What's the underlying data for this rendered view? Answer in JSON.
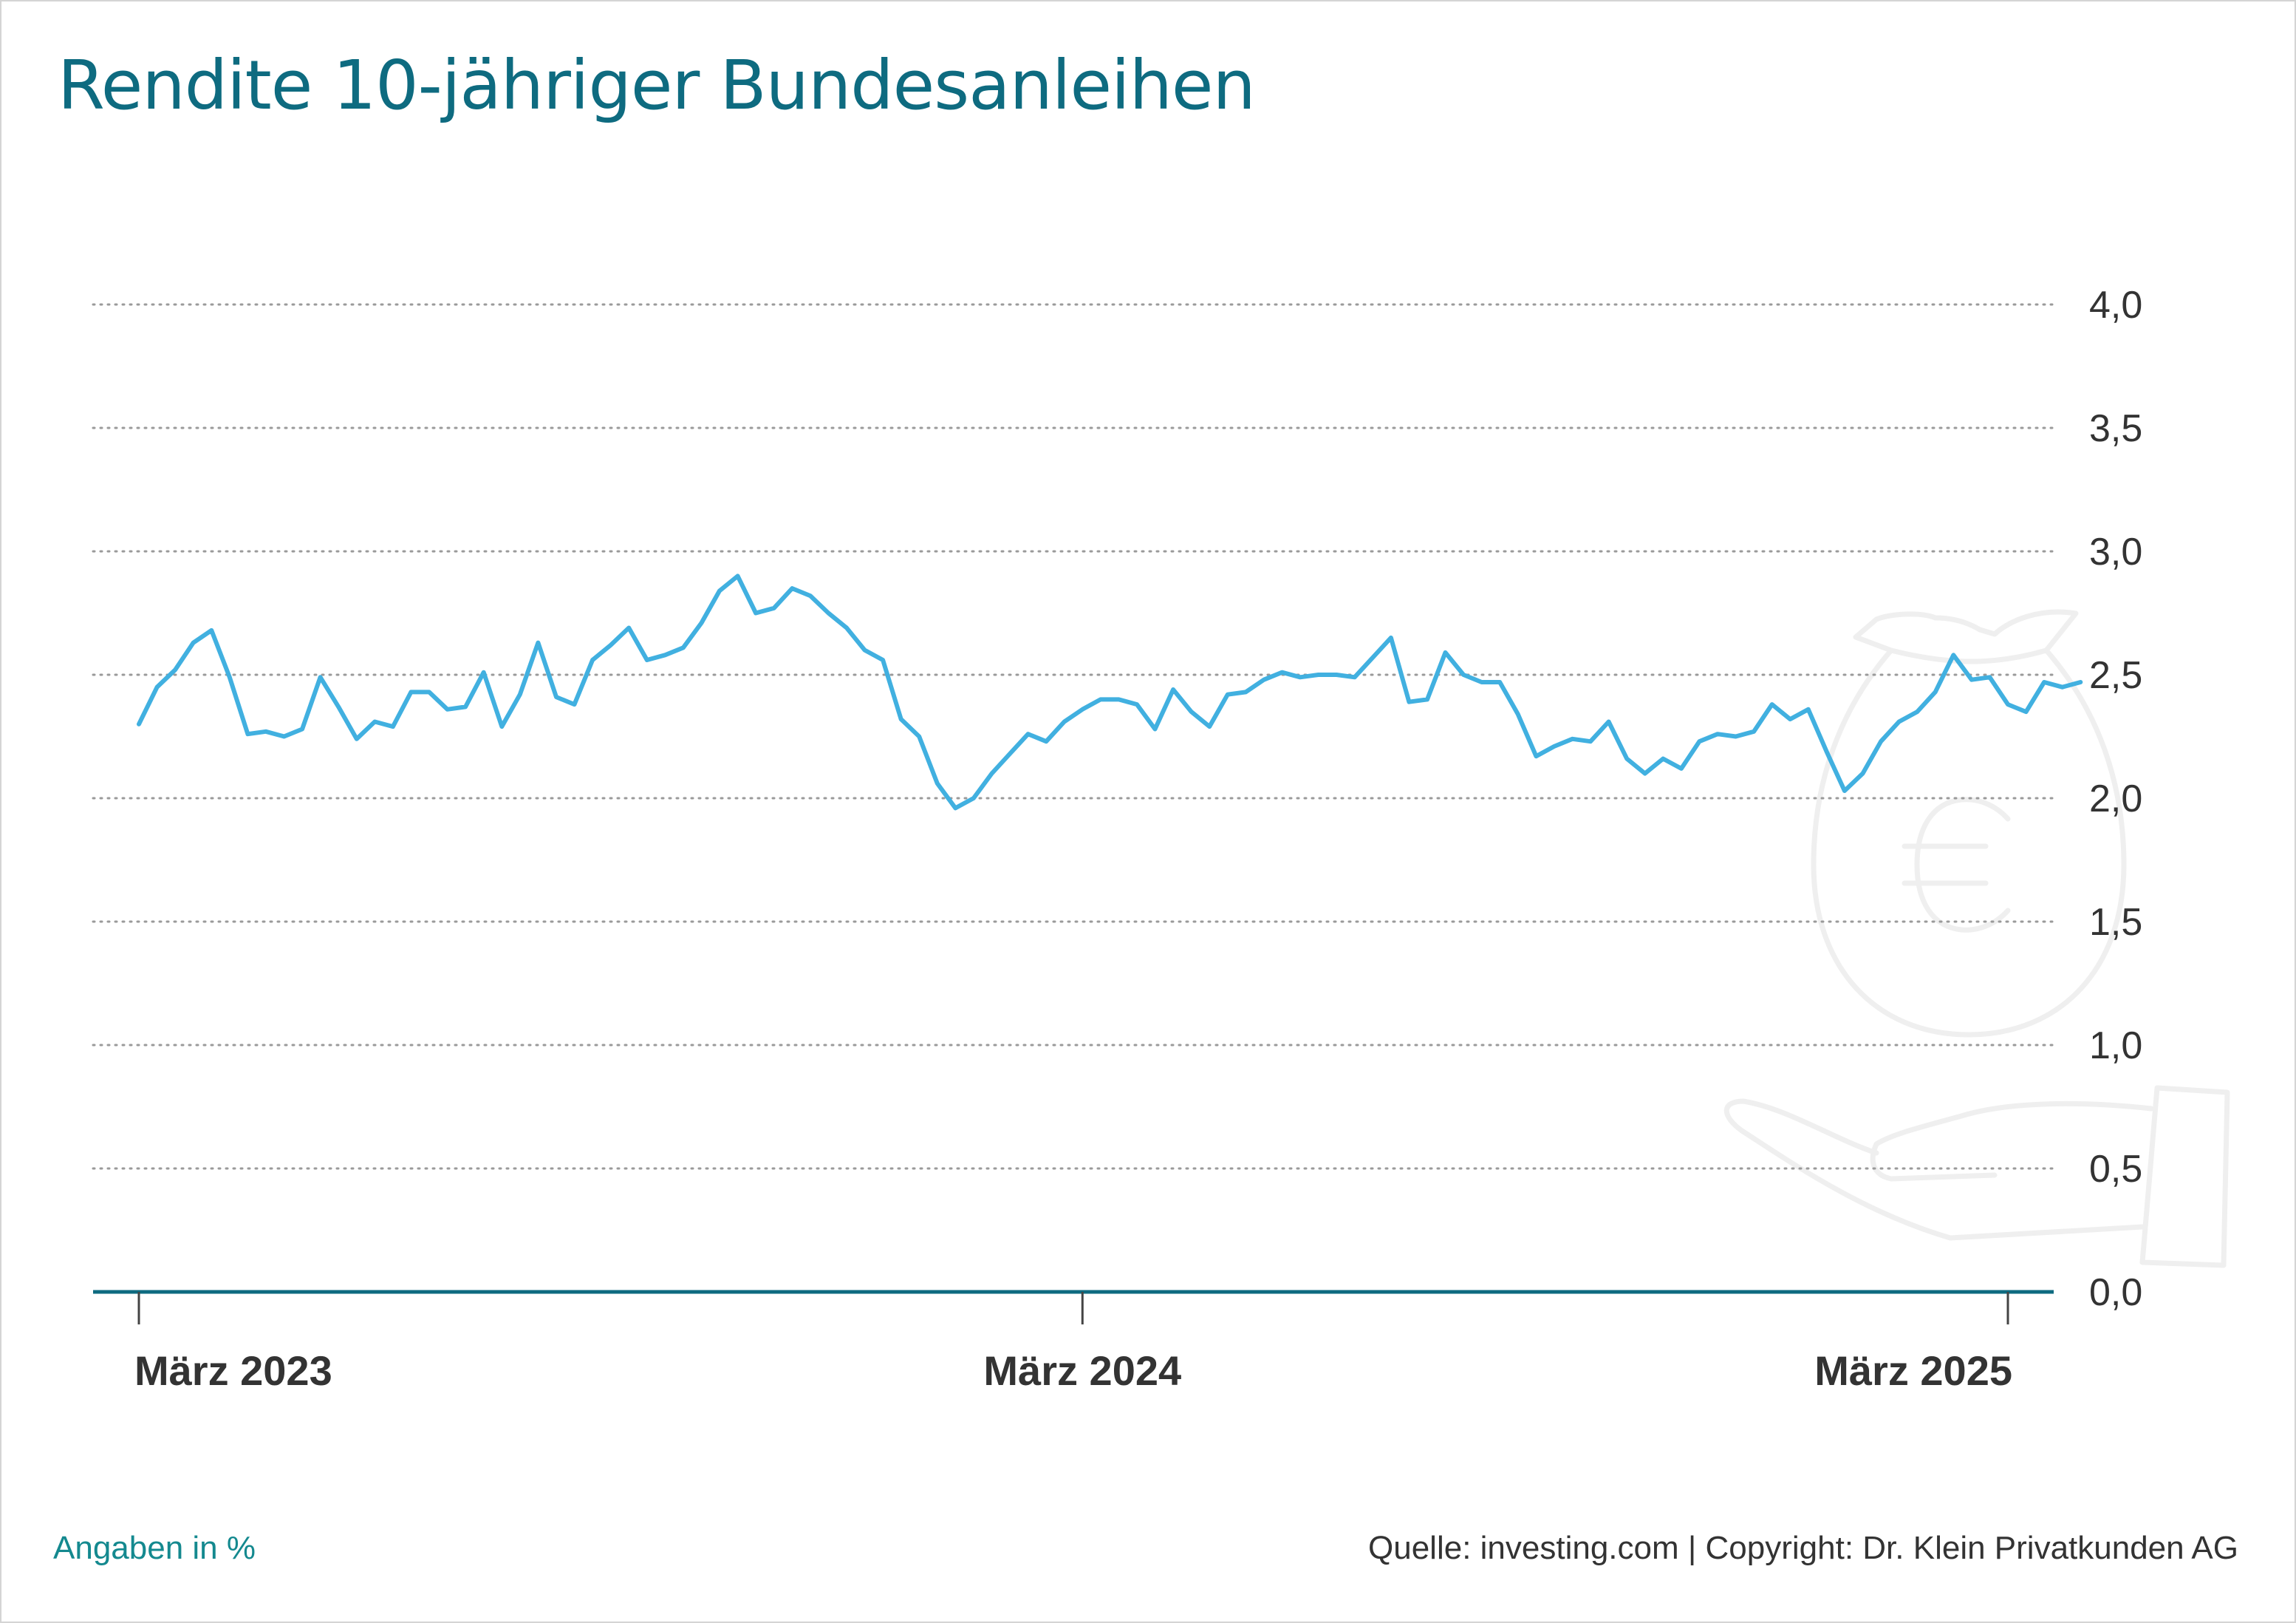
{
  "title": "Rendite 10-jähriger Bundesanleihen",
  "footer": {
    "unit_note": "Angaben in %",
    "source_note": "Quelle: investing.com | Copyright: Dr. Klein Privatkunden AG"
  },
  "colors": {
    "title": "#0e6b80",
    "line": "#41b0e0",
    "axis": "#0e6b80",
    "grid": "#9a9a9a",
    "tick_text": "#333333",
    "unit_note": "#14898f",
    "icon": "#efefef"
  },
  "icons": [
    "money-bag-euro-icon",
    "open-hand-icon"
  ],
  "chart_data": {
    "type": "line",
    "ylim": [
      0,
      4
    ],
    "y_ticks": [
      "0,0",
      "0,5",
      "1,0",
      "1,5",
      "2,0",
      "2,5",
      "3,0",
      "3,5",
      "4,0"
    ],
    "x_ticks": [
      {
        "label": "März 2023",
        "week": 0
      },
      {
        "label": "März 2024",
        "week": 52
      },
      {
        "label": "März 2025",
        "week": 103
      }
    ],
    "x_range": [
      -3,
      105
    ],
    "grid": "horizontal dotted",
    "legend": "none",
    "series": [
      {
        "values": [
          2.3,
          2.45,
          2.52,
          2.63,
          2.68,
          2.49,
          2.26,
          2.27,
          2.25,
          2.28,
          2.49,
          2.37,
          2.24,
          2.31,
          2.29,
          2.43,
          2.43,
          2.36,
          2.37,
          2.51,
          2.29,
          2.42,
          2.63,
          2.41,
          2.38,
          2.56,
          2.62,
          2.69,
          2.56,
          2.58,
          2.61,
          2.71,
          2.84,
          2.9,
          2.75,
          2.77,
          2.85,
          2.82,
          2.75,
          2.69,
          2.6,
          2.56,
          2.32,
          2.25,
          2.06,
          1.96,
          2.0,
          2.1,
          2.18,
          2.26,
          2.23,
          2.31,
          2.36,
          2.4,
          2.4,
          2.38,
          2.28,
          2.44,
          2.35,
          2.29,
          2.42,
          2.43,
          2.48,
          2.51,
          2.49,
          2.5,
          2.5,
          2.49,
          2.57,
          2.65,
          2.39,
          2.4,
          2.59,
          2.5,
          2.47,
          2.47,
          2.34,
          2.17,
          2.21,
          2.24,
          2.23,
          2.31,
          2.16,
          2.1,
          2.16,
          2.12,
          2.23,
          2.26,
          2.25,
          2.27,
          2.38,
          2.32,
          2.36,
          2.19,
          2.03,
          2.1,
          2.23,
          2.31,
          2.35,
          2.43,
          2.58,
          2.48,
          2.49,
          2.38,
          2.35,
          2.47,
          2.45,
          2.47
        ]
      }
    ]
  }
}
